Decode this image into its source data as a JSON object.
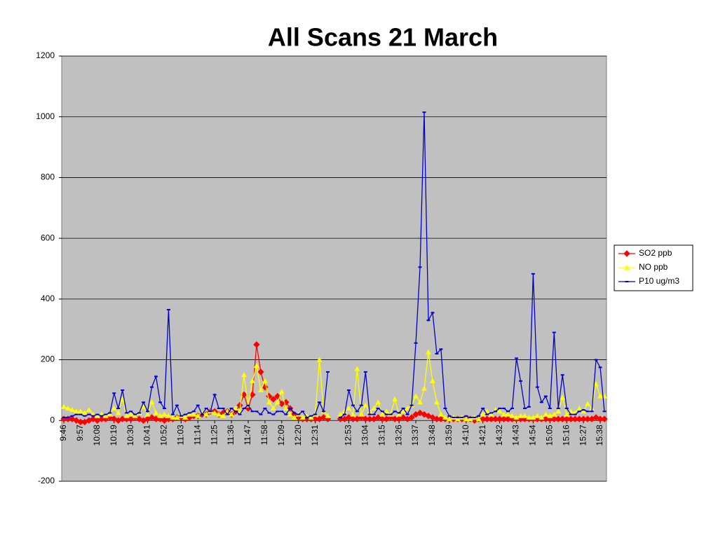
{
  "chart_data": {
    "type": "line",
    "title": "All Scans 21 March",
    "categories": [
      "9:46",
      null,
      null,
      null,
      "9:57",
      null,
      null,
      null,
      "10:08",
      null,
      null,
      null,
      "10:19",
      null,
      null,
      null,
      "10:30",
      null,
      null,
      null,
      "10:41",
      null,
      null,
      null,
      "10:52",
      null,
      null,
      null,
      "11:03",
      null,
      null,
      null,
      "11:14",
      null,
      null,
      null,
      "11:25",
      null,
      null,
      null,
      "11:36",
      null,
      null,
      null,
      "11:47",
      null,
      null,
      null,
      "11:58",
      null,
      null,
      null,
      "12:09",
      null,
      null,
      null,
      "12:20",
      null,
      null,
      null,
      "12:31",
      null,
      null,
      null,
      null,
      null,
      null,
      null,
      "12:53",
      null,
      null,
      null,
      "13:04",
      null,
      null,
      null,
      "13:15",
      null,
      null,
      null,
      "13:26",
      null,
      null,
      null,
      "13:37",
      null,
      null,
      null,
      "13:48",
      null,
      null,
      null,
      "13:59",
      null,
      null,
      null,
      "14:10",
      null,
      null,
      null,
      "14:21",
      null,
      null,
      null,
      "14:32",
      null,
      null,
      null,
      "14:43",
      null,
      null,
      null,
      "14:54",
      null,
      null,
      null,
      "15:05",
      null,
      null,
      null,
      "15:16",
      null,
      null,
      null,
      "15:27",
      null,
      null,
      null,
      "15:38",
      null
    ],
    "series": [
      {
        "name": "SO2 ppb",
        "color": "#ff0000",
        "marker": "diamond",
        "values": [
          5,
          5,
          5,
          0,
          -5,
          -5,
          0,
          5,
          0,
          5,
          5,
          10,
          5,
          0,
          5,
          5,
          5,
          10,
          5,
          0,
          5,
          10,
          5,
          5,
          0,
          5,
          5,
          10,
          10,
          5,
          10,
          15,
          15,
          20,
          20,
          30,
          30,
          20,
          25,
          30,
          20,
          30,
          50,
          85,
          40,
          85,
          250,
          160,
          110,
          80,
          70,
          80,
          55,
          60,
          40,
          20,
          10,
          5,
          5,
          5,
          5,
          5,
          10,
          5,
          null,
          null,
          5,
          5,
          10,
          5,
          5,
          10,
          5,
          5,
          5,
          10,
          5,
          5,
          10,
          5,
          5,
          10,
          5,
          10,
          20,
          25,
          20,
          15,
          10,
          5,
          5,
          5,
          5,
          5,
          5,
          5,
          5,
          5,
          0,
          5,
          5,
          5,
          5,
          5,
          5,
          5,
          5,
          5,
          5,
          5,
          5,
          5,
          5,
          5,
          5,
          5,
          5,
          5,
          5,
          5,
          5,
          5,
          5,
          5,
          5,
          5,
          5,
          10,
          5,
          5
        ]
      },
      {
        "name": "NO ppb",
        "color": "#ffff00",
        "marker": "triangle",
        "values": [
          45,
          40,
          35,
          30,
          30,
          25,
          35,
          20,
          15,
          20,
          15,
          20,
          40,
          25,
          70,
          15,
          20,
          15,
          25,
          45,
          20,
          60,
          25,
          15,
          20,
          15,
          10,
          10,
          15,
          10,
          20,
          20,
          15,
          25,
          20,
          30,
          25,
          20,
          15,
          30,
          20,
          40,
          30,
          150,
          50,
          130,
          180,
          100,
          130,
          60,
          40,
          60,
          95,
          40,
          20,
          10,
          20,
          10,
          15,
          10,
          20,
          200,
          30,
          15,
          null,
          null,
          20,
          30,
          40,
          20,
          170,
          20,
          50,
          30,
          40,
          60,
          20,
          30,
          20,
          70,
          20,
          30,
          40,
          50,
          80,
          60,
          105,
          225,
          130,
          60,
          20,
          10,
          5,
          10,
          5,
          10,
          5,
          5,
          10,
          5,
          20,
          30,
          20,
          35,
          30,
          20,
          20,
          15,
          10,
          15,
          15,
          10,
          10,
          15,
          10,
          20,
          15,
          20,
          30,
          75,
          20,
          30,
          25,
          40,
          30,
          55,
          40,
          120,
          80,
          80
        ]
      },
      {
        "name": "P10 ug/m3",
        "color": "#0000cc",
        "marker": "dash",
        "values": [
          10,
          10,
          15,
          20,
          20,
          15,
          20,
          15,
          20,
          15,
          20,
          25,
          90,
          40,
          100,
          25,
          30,
          20,
          25,
          60,
          30,
          110,
          145,
          60,
          40,
          365,
          20,
          50,
          15,
          20,
          25,
          30,
          50,
          20,
          40,
          30,
          85,
          40,
          40,
          20,
          40,
          30,
          20,
          40,
          50,
          30,
          30,
          20,
          40,
          25,
          20,
          30,
          30,
          20,
          40,
          25,
          20,
          30,
          10,
          15,
          20,
          60,
          30,
          160,
          null,
          null,
          10,
          20,
          100,
          50,
          30,
          50,
          160,
          20,
          20,
          40,
          30,
          20,
          20,
          30,
          25,
          40,
          20,
          50,
          255,
          505,
          1015,
          330,
          355,
          220,
          235,
          40,
          15,
          10,
          10,
          10,
          15,
          10,
          10,
          15,
          40,
          20,
          25,
          30,
          40,
          40,
          30,
          40,
          205,
          130,
          40,
          45,
          483,
          110,
          60,
          80,
          40,
          290,
          40,
          150,
          40,
          20,
          20,
          30,
          35,
          30,
          30,
          200,
          175,
          30
        ]
      }
    ],
    "ylim": [
      -200,
      1200
    ],
    "yticks": [
      -200,
      0,
      200,
      400,
      600,
      800,
      1000,
      1200
    ],
    "grid": true,
    "legend": "right"
  }
}
